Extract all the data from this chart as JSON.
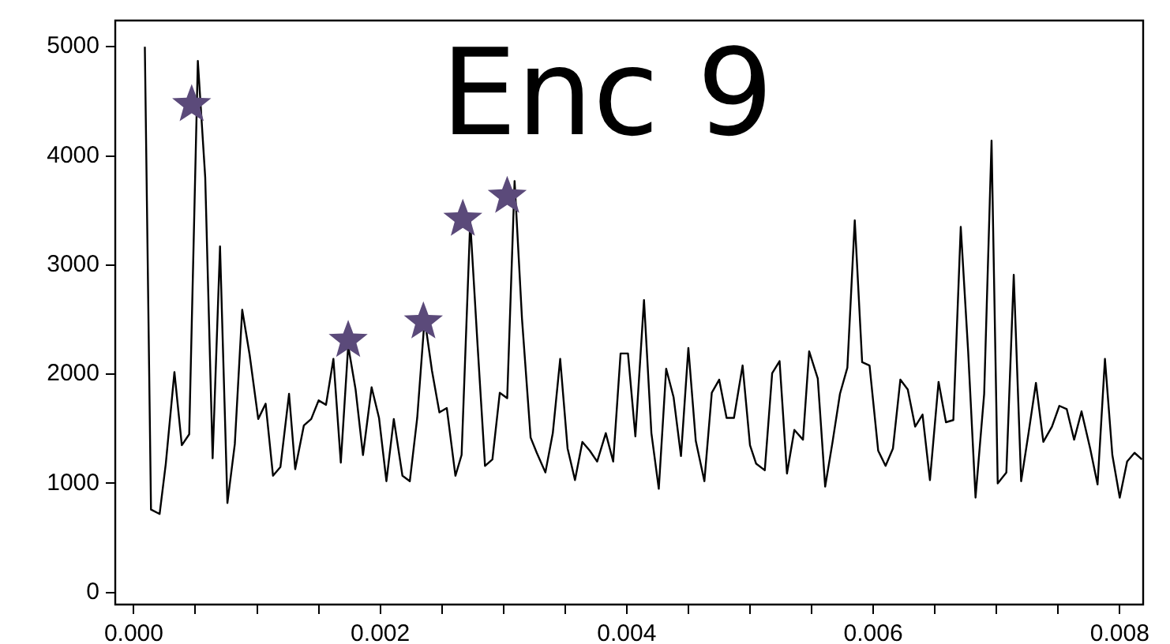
{
  "chart_data": {
    "type": "line",
    "title": "Enc 9",
    "xlim": [
      -0.00015,
      0.00819
    ],
    "ylim": [
      -110,
      5240
    ],
    "xticks": [
      {
        "value": 0,
        "label": "0.000"
      },
      {
        "value": 0.0005,
        "label": null
      },
      {
        "value": 0.001,
        "label": null
      },
      {
        "value": 0.0015,
        "label": null
      },
      {
        "value": 0.002,
        "label": "0.002"
      },
      {
        "value": 0.0025,
        "label": null
      },
      {
        "value": 0.003,
        "label": null
      },
      {
        "value": 0.0035,
        "label": null
      },
      {
        "value": 0.004,
        "label": "0.004"
      },
      {
        "value": 0.0045,
        "label": null
      },
      {
        "value": 0.005,
        "label": null
      },
      {
        "value": 0.0055,
        "label": null
      },
      {
        "value": 0.006,
        "label": "0.006"
      },
      {
        "value": 0.0065,
        "label": null
      },
      {
        "value": 0.007,
        "label": null
      },
      {
        "value": 0.0075,
        "label": null
      },
      {
        "value": 0.008,
        "label": "0.008"
      }
    ],
    "yticks": [
      0,
      1000,
      2000,
      3000,
      4000,
      5000
    ],
    "grid": false,
    "legend": false,
    "series": [
      {
        "type": "line",
        "color": "#000000",
        "marker": "none",
        "line_style": "solid",
        "x": [
          9e-05,
          0.00014,
          0.00021,
          0.00026,
          0.00033,
          0.00039,
          0.00045,
          0.00052,
          0.00058,
          0.00064,
          0.0007,
          0.00076,
          0.00082,
          0.00088,
          0.00094,
          0.00101,
          0.00107,
          0.00113,
          0.00119,
          0.00126,
          0.00131,
          0.00138,
          0.00144,
          0.0015,
          0.00156,
          0.00162,
          0.00168,
          0.00174,
          0.0018,
          0.00186,
          0.00193,
          0.00199,
          0.00205,
          0.00211,
          0.00218,
          0.00224,
          0.0023,
          0.00236,
          0.00242,
          0.00248,
          0.00254,
          0.00261,
          0.00266,
          0.00273,
          0.00279,
          0.00285,
          0.00291,
          0.00297,
          0.00303,
          0.00309,
          0.00315,
          0.00322,
          0.00327,
          0.00334,
          0.0034,
          0.00346,
          0.00352,
          0.00358,
          0.00364,
          0.0037,
          0.00376,
          0.00383,
          0.00389,
          0.00395,
          0.00401,
          0.00407,
          0.00414,
          0.0042,
          0.00426,
          0.00432,
          0.00438,
          0.00444,
          0.0045,
          0.00456,
          0.00463,
          0.00469,
          0.00475,
          0.00481,
          0.00487,
          0.00494,
          0.005,
          0.00505,
          0.00512,
          0.00518,
          0.00524,
          0.0053,
          0.00536,
          0.00543,
          0.00548,
          0.00555,
          0.00561,
          0.00567,
          0.00573,
          0.00579,
          0.00585,
          0.00591,
          0.00597,
          0.00604,
          0.0061,
          0.00616,
          0.00622,
          0.00628,
          0.00634,
          0.0064,
          0.00646,
          0.00653,
          0.00659,
          0.00665,
          0.00671,
          0.00677,
          0.00683,
          0.0069,
          0.00696,
          0.00701,
          0.00708,
          0.00714,
          0.0072,
          0.00726,
          0.00732,
          0.00738,
          0.00745,
          0.00751,
          0.00757,
          0.00763,
          0.00769,
          0.00776,
          0.00782,
          0.00788,
          0.00794,
          0.008,
          0.00806,
          0.00812,
          0.00818
        ],
        "values": [
          5000,
          760,
          720,
          1180,
          2020,
          1350,
          1450,
          4870,
          3800,
          1230,
          3170,
          820,
          1360,
          2590,
          2180,
          1590,
          1730,
          1070,
          1150,
          1820,
          1130,
          1530,
          1590,
          1760,
          1720,
          2140,
          1190,
          2260,
          1860,
          1260,
          1880,
          1600,
          1020,
          1590,
          1070,
          1020,
          1600,
          2510,
          2030,
          1650,
          1690,
          1070,
          1260,
          3400,
          2260,
          1160,
          1220,
          1830,
          1780,
          3770,
          2510,
          1420,
          1280,
          1100,
          1460,
          2140,
          1320,
          1030,
          1380,
          1300,
          1200,
          1460,
          1200,
          2190,
          2190,
          1430,
          2680,
          1460,
          950,
          2050,
          1790,
          1250,
          2240,
          1390,
          1020,
          1830,
          1950,
          1600,
          1600,
          2080,
          1350,
          1180,
          1120,
          2010,
          2120,
          1090,
          1490,
          1400,
          2210,
          1960,
          970,
          1380,
          1820,
          2060,
          3410,
          2110,
          2080,
          1300,
          1160,
          1320,
          1950,
          1860,
          1520,
          1630,
          1030,
          1930,
          1560,
          1580,
          3350,
          2210,
          870,
          1820,
          4140,
          1000,
          1100,
          2910,
          1020,
          1460,
          1920,
          1380,
          1520,
          1710,
          1680,
          1400,
          1660,
          1320,
          990,
          2140,
          1260,
          870,
          1200,
          1280,
          1220
        ]
      },
      {
        "type": "scatter",
        "color": "#5b4a7a",
        "marker": "star",
        "x": [
          0.00047,
          0.00174,
          0.00235,
          0.00267,
          0.00303
        ],
        "values": [
          4470,
          2310,
          2480,
          3420,
          3630
        ]
      }
    ]
  }
}
